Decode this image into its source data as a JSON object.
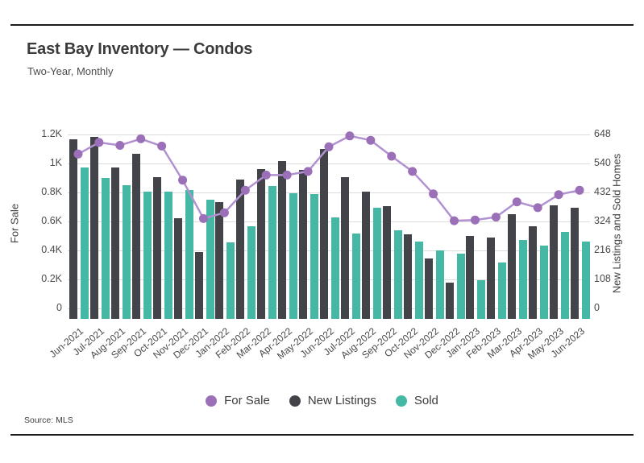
{
  "header": {
    "title": "East Bay Inventory — Condos",
    "subtitle": "Two-Year, Monthly"
  },
  "source": "Source: MLS",
  "legend_labels": [
    "For Sale",
    "New Listings",
    "Sold"
  ],
  "colors": {
    "for_sale_line": "#b191d1",
    "for_sale_marker": "#9b70b8",
    "new_listings": "#424449",
    "sold": "#44b8a4",
    "gridline": "#dcdcdc",
    "border": "#1c1c1c"
  },
  "chart_data": {
    "type": "bar",
    "subtype": "grouped bars with overlaid line",
    "title": "East Bay Inventory — Condos",
    "subtitle": "Two-Year, Monthly",
    "grid": true,
    "legend_position": "bottom",
    "categories": [
      "Jun-2021",
      "Jul-2021",
      "Aug-2021",
      "Sep-2021",
      "Oct-2021",
      "Nov-2021",
      "Dec-2021",
      "Jan-2022",
      "Feb-2022",
      "Mar-2022",
      "Apr-2022",
      "May-2022",
      "Jun-2022",
      "Jul-2022",
      "Aug-2022",
      "Sep-2022",
      "Oct-2022",
      "Nov-2022",
      "Dec-2022",
      "Jan-2023",
      "Feb-2023",
      "Mar-2023",
      "Apr-2023",
      "May-2023",
      "Jun-2023"
    ],
    "series": [
      {
        "name": "For Sale",
        "type": "line",
        "axis": "left",
        "color": "#b191d1",
        "marker_color": "#9b70b8",
        "values": [
          1065,
          1145,
          1125,
          1170,
          1120,
          885,
          620,
          660,
          815,
          920,
          920,
          945,
          1115,
          1190,
          1160,
          1050,
          945,
          790,
          605,
          610,
          630,
          735,
          695,
          785,
          815
        ]
      },
      {
        "name": "New Listings",
        "type": "bar",
        "axis": "right",
        "color": "#424449",
        "marker_color": "#424449",
        "values": [
          630,
          640,
          525,
          575,
          490,
          335,
          210,
          395,
          480,
          520,
          550,
          515,
          595,
          490,
          435,
          380,
          275,
          185,
          95,
          270,
          265,
          350,
          305,
          385,
          375
        ]
      },
      {
        "name": "Sold",
        "type": "bar",
        "axis": "right",
        "color": "#44b8a4",
        "marker_color": "#44b8a4",
        "values": [
          525,
          485,
          460,
          435,
          435,
          440,
          405,
          245,
          305,
          455,
          430,
          425,
          340,
          280,
          375,
          290,
          250,
          215,
          205,
          105,
          170,
          255,
          235,
          285,
          250
        ]
      }
    ],
    "left_axis": {
      "label": "For Sale",
      "range": [
        0,
        1200
      ],
      "ticks": [
        "1.2K",
        "1K",
        "0.8K",
        "0.6K",
        "0.4K",
        "0.2K",
        "0"
      ]
    },
    "right_axis": {
      "label": "New Listings and Sold Homes",
      "range": [
        0,
        648
      ],
      "ticks": [
        "648",
        "540",
        "432",
        "324",
        "216",
        "108",
        "0"
      ]
    }
  }
}
